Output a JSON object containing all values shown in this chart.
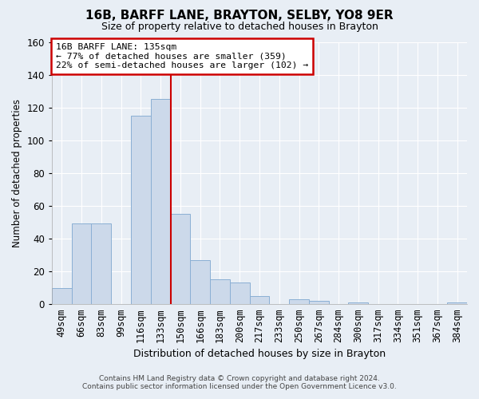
{
  "title": "16B, BARFF LANE, BRAYTON, SELBY, YO8 9ER",
  "subtitle": "Size of property relative to detached houses in Brayton",
  "xlabel": "Distribution of detached houses by size in Brayton",
  "ylabel": "Number of detached properties",
  "bar_labels": [
    "49sqm",
    "66sqm",
    "83sqm",
    "99sqm",
    "116sqm",
    "133sqm",
    "150sqm",
    "166sqm",
    "183sqm",
    "200sqm",
    "217sqm",
    "233sqm",
    "250sqm",
    "267sqm",
    "284sqm",
    "300sqm",
    "317sqm",
    "334sqm",
    "351sqm",
    "367sqm",
    "384sqm"
  ],
  "bar_values": [
    10,
    49,
    49,
    0,
    115,
    125,
    55,
    27,
    15,
    13,
    5,
    0,
    3,
    2,
    0,
    1,
    0,
    0,
    0,
    0,
    1
  ],
  "bar_color": "#ccd9ea",
  "bar_edge_color": "#8aafd4",
  "property_line_index": 6,
  "property_line_color": "#cc0000",
  "ylim": [
    0,
    160
  ],
  "yticks": [
    0,
    20,
    40,
    60,
    80,
    100,
    120,
    140,
    160
  ],
  "annotation_title": "16B BARFF LANE: 135sqm",
  "annotation_line1": "← 77% of detached houses are smaller (359)",
  "annotation_line2": "22% of semi-detached houses are larger (102) →",
  "annotation_box_color": "#ffffff",
  "annotation_box_edge": "#cc0000",
  "footer_line1": "Contains HM Land Registry data © Crown copyright and database right 2024.",
  "footer_line2": "Contains public sector information licensed under the Open Government Licence v3.0.",
  "background_color": "#e8eef5",
  "plot_background": "#e8eef5",
  "grid_color": "#ffffff",
  "title_fontsize": 11,
  "subtitle_fontsize": 9,
  "ylabel_fontsize": 8.5,
  "xlabel_fontsize": 9
}
